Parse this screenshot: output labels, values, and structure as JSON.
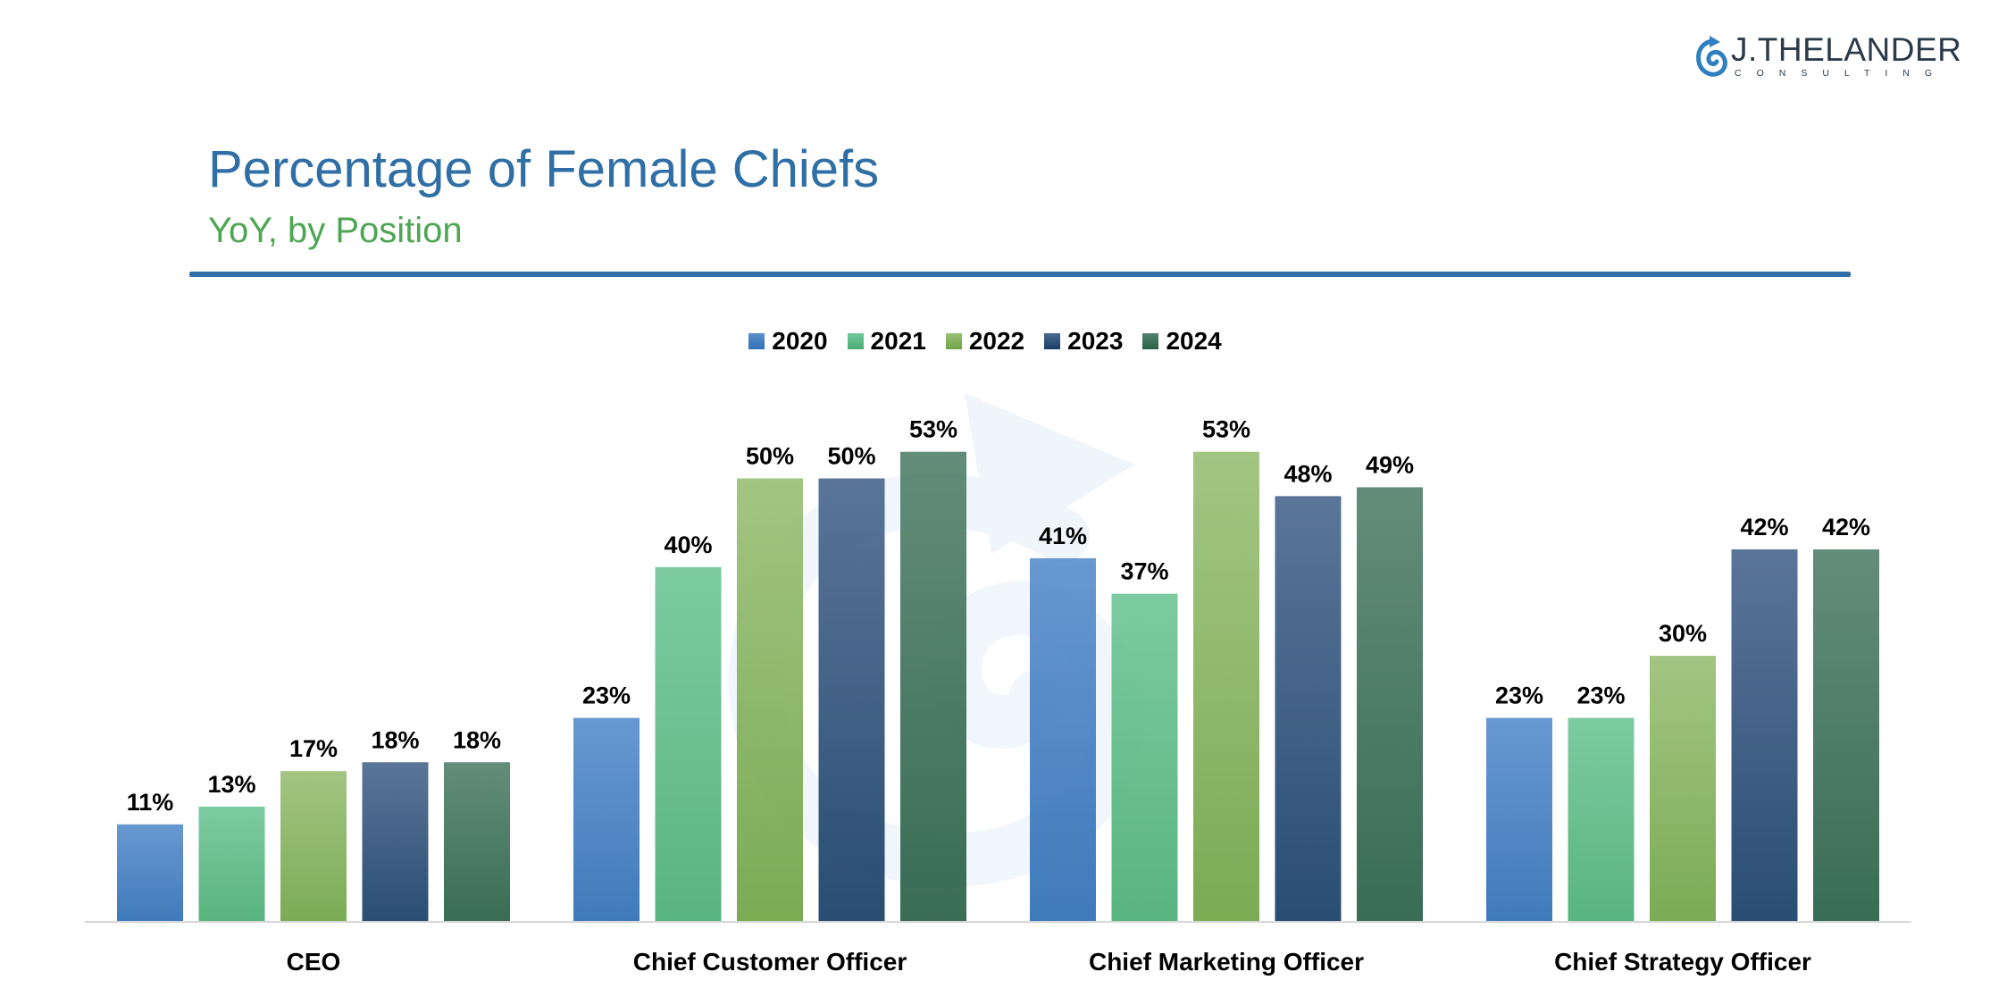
{
  "logo": {
    "name": "J.THELANDER",
    "tagline": "CONSULTING"
  },
  "header": {
    "title": "Percentage of Female Chiefs",
    "subtitle": "YoY, by Position"
  },
  "colors": {
    "title": "#2f6fa6",
    "subtitle": "#4ea653",
    "2020": [
      "#5b8fcc",
      "#2f6fb5"
    ],
    "2021": [
      "#72c699",
      "#4aae74"
    ],
    "2022": [
      "#9bc078",
      "#6fa445"
    ],
    "2023": [
      "#4c6990",
      "#173e66"
    ],
    "2024": [
      "#55836e",
      "#286045"
    ]
  },
  "chart_data": {
    "type": "bar",
    "title": "Percentage of Female Chiefs",
    "subtitle": "YoY, by Position",
    "categories": [
      "CEO",
      "Chief Customer Officer",
      "Chief Marketing Officer",
      "Chief Strategy Officer"
    ],
    "series": [
      {
        "name": "2020",
        "values": [
          11,
          23,
          41,
          23
        ],
        "labels": [
          "11%",
          "23%",
          "41%",
          "23%"
        ]
      },
      {
        "name": "2021",
        "values": [
          13,
          40,
          37,
          23
        ],
        "labels": [
          "13%",
          "40%",
          "37%",
          "23%"
        ]
      },
      {
        "name": "2022",
        "values": [
          17,
          50,
          53,
          30
        ],
        "labels": [
          "17%",
          "50%",
          "53%",
          "30%"
        ]
      },
      {
        "name": "2023",
        "values": [
          18,
          50,
          48,
          42
        ],
        "labels": [
          "18%",
          "50%",
          "48%",
          "42%"
        ]
      },
      {
        "name": "2024",
        "values": [
          18,
          53,
          49,
          42
        ],
        "labels": [
          "18%",
          "53%",
          "49%",
          "42%"
        ]
      }
    ],
    "xlabel": "",
    "ylabel": "",
    "ylim": [
      0,
      60
    ],
    "grid": false,
    "legend": "top-center"
  }
}
